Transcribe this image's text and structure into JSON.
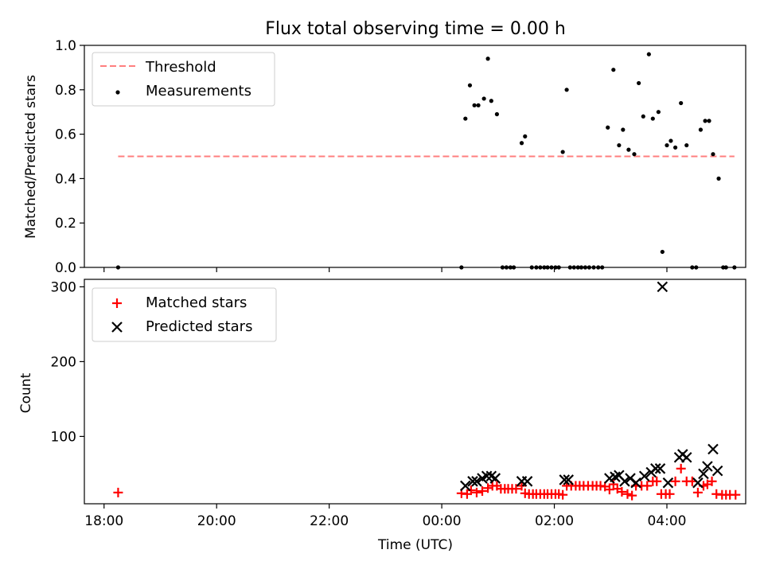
{
  "figure": {
    "title": "Flux total observing time = 0.00 h"
  },
  "chart_data": [
    {
      "type": "scatter",
      "ylabel": "Matched/Predicted stars",
      "ylim": [
        0,
        1.0
      ],
      "yticks": [
        0.0,
        0.2,
        0.4,
        0.6,
        0.8,
        1.0
      ],
      "ytick_labels": [
        "0.0",
        "0.2",
        "0.4",
        "0.6",
        "0.8",
        "1.0"
      ],
      "x_unit": "hours since 18:00 UTC",
      "xlim": [
        -0.35,
        11.4
      ],
      "legend": {
        "position": "top-left"
      },
      "threshold": {
        "name": "Threshold",
        "value": 0.5,
        "x_start": 0.25,
        "x_end": 11.2,
        "color": "#ff7f7f"
      },
      "series": [
        {
          "name": "Measurements",
          "color": "#000000",
          "points": [
            [
              0.25,
              0.0
            ],
            [
              6.35,
              0.0
            ],
            [
              6.42,
              0.67
            ],
            [
              6.5,
              0.82
            ],
            [
              6.58,
              0.73
            ],
            [
              6.65,
              0.73
            ],
            [
              6.75,
              0.76
            ],
            [
              6.82,
              0.94
            ],
            [
              6.88,
              0.75
            ],
            [
              6.98,
              0.69
            ],
            [
              7.08,
              0.0
            ],
            [
              7.15,
              0.0
            ],
            [
              7.22,
              0.0
            ],
            [
              7.28,
              0.0
            ],
            [
              7.42,
              0.56
            ],
            [
              7.48,
              0.59
            ],
            [
              7.6,
              0.0
            ],
            [
              7.68,
              0.0
            ],
            [
              7.75,
              0.0
            ],
            [
              7.82,
              0.0
            ],
            [
              7.88,
              0.0
            ],
            [
              7.95,
              0.0
            ],
            [
              8.02,
              0.0
            ],
            [
              8.08,
              0.0
            ],
            [
              8.15,
              0.52
            ],
            [
              8.22,
              0.8
            ],
            [
              8.28,
              0.0
            ],
            [
              8.35,
              0.0
            ],
            [
              8.42,
              0.0
            ],
            [
              8.48,
              0.0
            ],
            [
              8.55,
              0.0
            ],
            [
              8.62,
              0.0
            ],
            [
              8.7,
              0.0
            ],
            [
              8.78,
              0.0
            ],
            [
              8.85,
              0.0
            ],
            [
              8.95,
              0.63
            ],
            [
              9.05,
              0.89
            ],
            [
              9.15,
              0.55
            ],
            [
              9.22,
              0.62
            ],
            [
              9.32,
              0.53
            ],
            [
              9.42,
              0.51
            ],
            [
              9.5,
              0.83
            ],
            [
              9.58,
              0.68
            ],
            [
              9.68,
              0.96
            ],
            [
              9.75,
              0.67
            ],
            [
              9.85,
              0.7
            ],
            [
              9.92,
              0.07
            ],
            [
              10.0,
              0.55
            ],
            [
              10.07,
              0.57
            ],
            [
              10.15,
              0.54
            ],
            [
              10.25,
              0.74
            ],
            [
              10.35,
              0.55
            ],
            [
              10.45,
              0.0
            ],
            [
              10.52,
              0.0
            ],
            [
              10.6,
              0.62
            ],
            [
              10.68,
              0.66
            ],
            [
              10.75,
              0.66
            ],
            [
              10.82,
              0.51
            ],
            [
              10.92,
              0.4
            ],
            [
              11.0,
              0.0
            ],
            [
              11.05,
              0.0
            ],
            [
              11.2,
              0.0
            ]
          ]
        }
      ]
    },
    {
      "type": "scatter",
      "xlabel": "Time (UTC)",
      "ylabel": "Count",
      "ylim": [
        10,
        310
      ],
      "yticks": [
        100,
        200,
        300
      ],
      "ytick_labels": [
        "100",
        "200",
        "300"
      ],
      "x_unit": "hours since 18:00 UTC",
      "xlim": [
        -0.35,
        11.4
      ],
      "xticks": [
        0,
        2,
        4,
        6,
        8,
        10
      ],
      "xtick_labels": [
        "18:00",
        "20:00",
        "22:00",
        "00:00",
        "02:00",
        "04:00"
      ],
      "legend": {
        "position": "top-left"
      },
      "series": [
        {
          "name": "Matched stars",
          "marker": "+",
          "color": "#ff0000",
          "points": [
            [
              0.25,
              25
            ],
            [
              6.35,
              24
            ],
            [
              6.45,
              23
            ],
            [
              6.52,
              28
            ],
            [
              6.62,
              25
            ],
            [
              6.72,
              27
            ],
            [
              6.82,
              31
            ],
            [
              6.9,
              34
            ],
            [
              6.98,
              34
            ],
            [
              7.05,
              30
            ],
            [
              7.12,
              30
            ],
            [
              7.18,
              30
            ],
            [
              7.25,
              30
            ],
            [
              7.32,
              30
            ],
            [
              7.42,
              34
            ],
            [
              7.48,
              24
            ],
            [
              7.55,
              23
            ],
            [
              7.62,
              23
            ],
            [
              7.68,
              23
            ],
            [
              7.75,
              23
            ],
            [
              7.82,
              23
            ],
            [
              7.88,
              23
            ],
            [
              7.95,
              23
            ],
            [
              8.02,
              23
            ],
            [
              8.08,
              23
            ],
            [
              8.15,
              22
            ],
            [
              8.22,
              34
            ],
            [
              8.3,
              34
            ],
            [
              8.38,
              34
            ],
            [
              8.45,
              34
            ],
            [
              8.52,
              34
            ],
            [
              8.6,
              34
            ],
            [
              8.68,
              34
            ],
            [
              8.75,
              34
            ],
            [
              8.82,
              34
            ],
            [
              8.9,
              33
            ],
            [
              8.98,
              29
            ],
            [
              9.05,
              36
            ],
            [
              9.12,
              30
            ],
            [
              9.2,
              26
            ],
            [
              9.3,
              23
            ],
            [
              9.38,
              21
            ],
            [
              9.45,
              34
            ],
            [
              9.55,
              34
            ],
            [
              9.65,
              34
            ],
            [
              9.75,
              40
            ],
            [
              9.82,
              40
            ],
            [
              9.9,
              23
            ],
            [
              9.98,
              23
            ],
            [
              10.05,
              23
            ],
            [
              10.15,
              40
            ],
            [
              10.25,
              57
            ],
            [
              10.35,
              40
            ],
            [
              10.45,
              40
            ],
            [
              10.55,
              25
            ],
            [
              10.65,
              34
            ],
            [
              10.72,
              36
            ],
            [
              10.8,
              40
            ],
            [
              10.88,
              23
            ],
            [
              10.98,
              22
            ],
            [
              11.05,
              22
            ],
            [
              11.12,
              22
            ],
            [
              11.22,
              22
            ]
          ]
        },
        {
          "name": "Predicted stars",
          "marker": "x",
          "color": "#000000",
          "points": [
            [
              6.42,
              34
            ],
            [
              6.55,
              40
            ],
            [
              6.62,
              40
            ],
            [
              6.72,
              44
            ],
            [
              6.8,
              47
            ],
            [
              6.88,
              47
            ],
            [
              6.95,
              44
            ],
            [
              7.42,
              40
            ],
            [
              7.52,
              40
            ],
            [
              8.18,
              42
            ],
            [
              8.25,
              42
            ],
            [
              8.98,
              44
            ],
            [
              9.08,
              46
            ],
            [
              9.15,
              48
            ],
            [
              9.25,
              40
            ],
            [
              9.35,
              44
            ],
            [
              9.45,
              38
            ],
            [
              9.6,
              47
            ],
            [
              9.72,
              52
            ],
            [
              9.8,
              57
            ],
            [
              9.88,
              57
            ],
            [
              9.92,
              300
            ],
            [
              10.02,
              38
            ],
            [
              10.22,
              72
            ],
            [
              10.28,
              76
            ],
            [
              10.35,
              72
            ],
            [
              10.55,
              38
            ],
            [
              10.65,
              50
            ],
            [
              10.72,
              60
            ],
            [
              10.82,
              83
            ],
            [
              10.9,
              54
            ]
          ]
        }
      ]
    }
  ]
}
